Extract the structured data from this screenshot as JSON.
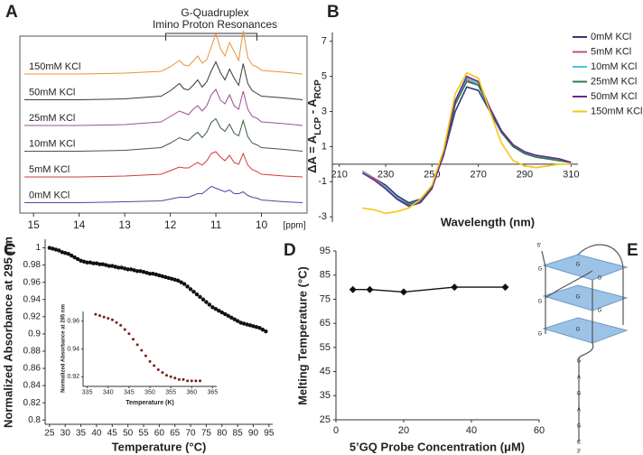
{
  "chart_data": [
    {
      "type": "spectra",
      "panel": "A",
      "title": [
        "G-Quadruplex",
        "Imino Proton Resonances"
      ],
      "x_unit_label": "[ppm]",
      "xlim": [
        15.3,
        9.0
      ],
      "xticks": [
        15,
        14,
        13,
        12,
        11,
        10
      ],
      "bracket": [
        12.1,
        10.1
      ],
      "x": [
        15.2,
        14,
        13,
        12.2,
        12,
        11.8,
        11.7,
        11.6,
        11.5,
        11.4,
        11.3,
        11.2,
        11.1,
        11,
        10.9,
        10.8,
        10.7,
        10.6,
        10.5,
        10.4,
        10.3,
        10.2,
        10.1,
        10,
        9.5,
        9.1
      ],
      "series": [
        {
          "name": "150mM KCl",
          "color": "#e8913a",
          "values": [
            0,
            0,
            1,
            3,
            8,
            15,
            10,
            9,
            14,
            20,
            12,
            16,
            30,
            45,
            28,
            20,
            35,
            25,
            15,
            48,
            18,
            10,
            8,
            4,
            2,
            0
          ]
        },
        {
          "name": "50mM KCl",
          "color": "#3a3a3a",
          "values": [
            0,
            0,
            1,
            4,
            10,
            18,
            12,
            11,
            16,
            22,
            14,
            20,
            32,
            42,
            30,
            22,
            34,
            24,
            16,
            40,
            18,
            10,
            7,
            4,
            2,
            0
          ]
        },
        {
          "name": "25mM KCl",
          "color": "#9a4f96",
          "values": [
            0,
            0,
            1,
            4,
            10,
            16,
            14,
            12,
            18,
            22,
            16,
            22,
            34,
            40,
            28,
            24,
            34,
            22,
            18,
            38,
            18,
            10,
            8,
            4,
            2,
            0
          ]
        },
        {
          "name": "10mM KCl",
          "color": "#3e5a4a",
          "values": [
            0,
            0,
            1,
            4,
            9,
            15,
            13,
            12,
            17,
            21,
            15,
            21,
            32,
            36,
            26,
            22,
            30,
            20,
            17,
            34,
            16,
            9,
            7,
            4,
            2,
            0
          ]
        },
        {
          "name": "5mM KCl",
          "color": "#d63a3a",
          "values": [
            0,
            0,
            1,
            3,
            7,
            11,
            10,
            10,
            13,
            16,
            13,
            18,
            26,
            28,
            22,
            18,
            24,
            16,
            14,
            26,
            13,
            8,
            6,
            3,
            1,
            0
          ]
        },
        {
          "name": "0mM KCl",
          "color": "#4a4aa0",
          "values": [
            0,
            0,
            1,
            2,
            4,
            6,
            6,
            6,
            8,
            10,
            10,
            14,
            18,
            16,
            14,
            12,
            14,
            10,
            10,
            12,
            8,
            6,
            5,
            3,
            1,
            0
          ]
        }
      ]
    },
    {
      "type": "line",
      "panel": "B",
      "x_label": "Wavelength (nm)",
      "y_label": [
        "ΔA = A",
        "LCP",
        " - A",
        "RCP"
      ],
      "xlim": [
        207,
        313
      ],
      "ylim": [
        -3.3,
        7.5
      ],
      "xticks": [
        210,
        230,
        250,
        270,
        290,
        310
      ],
      "yticks": [
        -3,
        -1,
        1,
        3,
        5,
        7
      ],
      "legend": "right",
      "x": [
        220,
        225,
        230,
        235,
        240,
        245,
        250,
        255,
        260,
        265,
        270,
        275,
        280,
        285,
        290,
        295,
        300,
        305,
        310
      ],
      "series": [
        {
          "name": "0mM KCl",
          "color": "#2e3a78",
          "values": [
            -0.5,
            -0.8,
            -1.2,
            -1.8,
            -2.2,
            -2.0,
            -1.3,
            0.5,
            3.0,
            4.4,
            4.2,
            3.0,
            1.8,
            1.0,
            0.6,
            0.4,
            0.3,
            0.2,
            0.1
          ]
        },
        {
          "name": "5mM KCl",
          "color": "#c0508a",
          "values": [
            -0.4,
            -0.8,
            -1.3,
            -1.9,
            -2.3,
            -2.1,
            -1.3,
            0.6,
            3.4,
            4.8,
            4.5,
            3.1,
            1.9,
            1.1,
            0.7,
            0.5,
            0.4,
            0.3,
            0.1
          ]
        },
        {
          "name": "10mM KCl",
          "color": "#4fc3d9",
          "values": [
            -0.4,
            -0.9,
            -1.3,
            -1.9,
            -2.3,
            -2.1,
            -1.3,
            0.6,
            3.5,
            4.9,
            4.6,
            3.2,
            1.9,
            1.1,
            0.7,
            0.5,
            0.4,
            0.2,
            0.1
          ]
        },
        {
          "name": "25mM KCl",
          "color": "#2e7d4f",
          "values": [
            -0.5,
            -0.9,
            -1.4,
            -2.0,
            -2.3,
            -2.1,
            -1.3,
            0.6,
            3.4,
            4.7,
            4.5,
            3.1,
            1.8,
            1.0,
            0.6,
            0.4,
            0.3,
            0.2,
            0.1
          ]
        },
        {
          "name": "50mM KCl",
          "color": "#6a2a8a",
          "values": [
            -0.5,
            -0.9,
            -1.4,
            -2.0,
            -2.4,
            -2.2,
            -1.4,
            0.6,
            3.6,
            5.0,
            4.7,
            3.2,
            1.9,
            1.1,
            0.7,
            0.5,
            0.4,
            0.3,
            0.1
          ]
        },
        {
          "name": "150mM KCl",
          "color": "#f5c518",
          "values": [
            -2.5,
            -2.6,
            -2.8,
            -2.7,
            -2.5,
            -2.0,
            -1.2,
            0.8,
            4.0,
            5.2,
            4.9,
            3.0,
            1.2,
            0.2,
            -0.1,
            -0.2,
            -0.1,
            0,
            0
          ]
        }
      ]
    },
    {
      "type": "scatter",
      "panel": "C",
      "x_label": "Temperature (°C)",
      "y_label": "Normalized Absorbance at 295 nm",
      "color": "#111111",
      "xlim": [
        23.6,
        96.2
      ],
      "ylim": [
        0.795,
        1.01
      ],
      "xticks": [
        25,
        30,
        35,
        40,
        45,
        50,
        55,
        60,
        65,
        70,
        75,
        80,
        85,
        90,
        95
      ],
      "yticks": [
        0.8,
        0.82,
        0.84,
        0.86,
        0.88,
        0.9,
        0.92,
        0.94,
        0.96,
        0.98,
        1
      ],
      "x": [
        25,
        26,
        27,
        28,
        29,
        30,
        31,
        32,
        33,
        34,
        35,
        36,
        37,
        38,
        39,
        40,
        41,
        42,
        43,
        44,
        45,
        46,
        47,
        48,
        49,
        50,
        51,
        52,
        53,
        54,
        55,
        56,
        57,
        58,
        59,
        60,
        61,
        62,
        63,
        64,
        65,
        66,
        67,
        68,
        69,
        70,
        71,
        72,
        73,
        74,
        75,
        76,
        77,
        78,
        79,
        80,
        81,
        82,
        83,
        84,
        85,
        86,
        87,
        88,
        89,
        90,
        91,
        92,
        93,
        94
      ],
      "values": [
        1.0,
        0.999,
        0.998,
        0.997,
        0.995,
        0.994,
        0.993,
        0.991,
        0.989,
        0.987,
        0.985,
        0.984,
        0.983,
        0.983,
        0.982,
        0.982,
        0.981,
        0.981,
        0.98,
        0.979,
        0.979,
        0.978,
        0.977,
        0.977,
        0.976,
        0.975,
        0.975,
        0.974,
        0.973,
        0.973,
        0.972,
        0.971,
        0.97,
        0.97,
        0.969,
        0.968,
        0.967,
        0.966,
        0.965,
        0.964,
        0.963,
        0.962,
        0.96,
        0.958,
        0.955,
        0.952,
        0.949,
        0.946,
        0.943,
        0.94,
        0.937,
        0.934,
        0.931,
        0.929,
        0.927,
        0.925,
        0.923,
        0.921,
        0.919,
        0.917,
        0.915,
        0.913,
        0.912,
        0.911,
        0.91,
        0.909,
        0.908,
        0.907,
        0.905,
        0.903
      ],
      "inset": {
        "x_label": "Temperature (K)",
        "y_label": "Normalized Absorbance at 295 nm",
        "color": "#7a1f1f",
        "xlim": [
          334,
          366
        ],
        "ylim": [
          0.913,
          0.967
        ],
        "xticks": [
          335,
          340,
          345,
          350,
          355,
          360,
          365
        ],
        "yticks": [
          0.92,
          0.94,
          0.96
        ],
        "x": [
          337,
          338,
          339,
          340,
          341,
          342,
          343,
          344,
          345,
          346,
          347,
          348,
          349,
          350,
          351,
          352,
          353,
          354,
          355,
          356,
          357,
          358,
          359,
          360,
          361,
          362
        ],
        "values": [
          0.965,
          0.964,
          0.963,
          0.962,
          0.961,
          0.959,
          0.957,
          0.954,
          0.951,
          0.947,
          0.943,
          0.939,
          0.935,
          0.931,
          0.928,
          0.925,
          0.923,
          0.921,
          0.92,
          0.919,
          0.918,
          0.918,
          0.917,
          0.917,
          0.917,
          0.917
        ]
      }
    },
    {
      "type": "line",
      "panel": "D",
      "x_label": "5’GQ Probe Concentration (μM)",
      "y_label": "Melting Temperature (°C)",
      "marker": "diamond",
      "color": "#111111",
      "xlim": [
        0,
        60
      ],
      "ylim": [
        25,
        95
      ],
      "xticks": [
        0,
        20,
        40,
        60
      ],
      "yticks": [
        25,
        35,
        45,
        55,
        65,
        75,
        85,
        95
      ],
      "x": [
        5,
        10,
        20,
        35,
        50
      ],
      "values": [
        79,
        79,
        78,
        80,
        80
      ]
    }
  ],
  "diagram": {
    "panel": "E",
    "labels": [
      "5'",
      "G",
      "G",
      "G",
      "G",
      "G",
      "G",
      "G",
      "G",
      "G",
      "A",
      "G",
      "A",
      "G",
      "C",
      "3'"
    ]
  }
}
